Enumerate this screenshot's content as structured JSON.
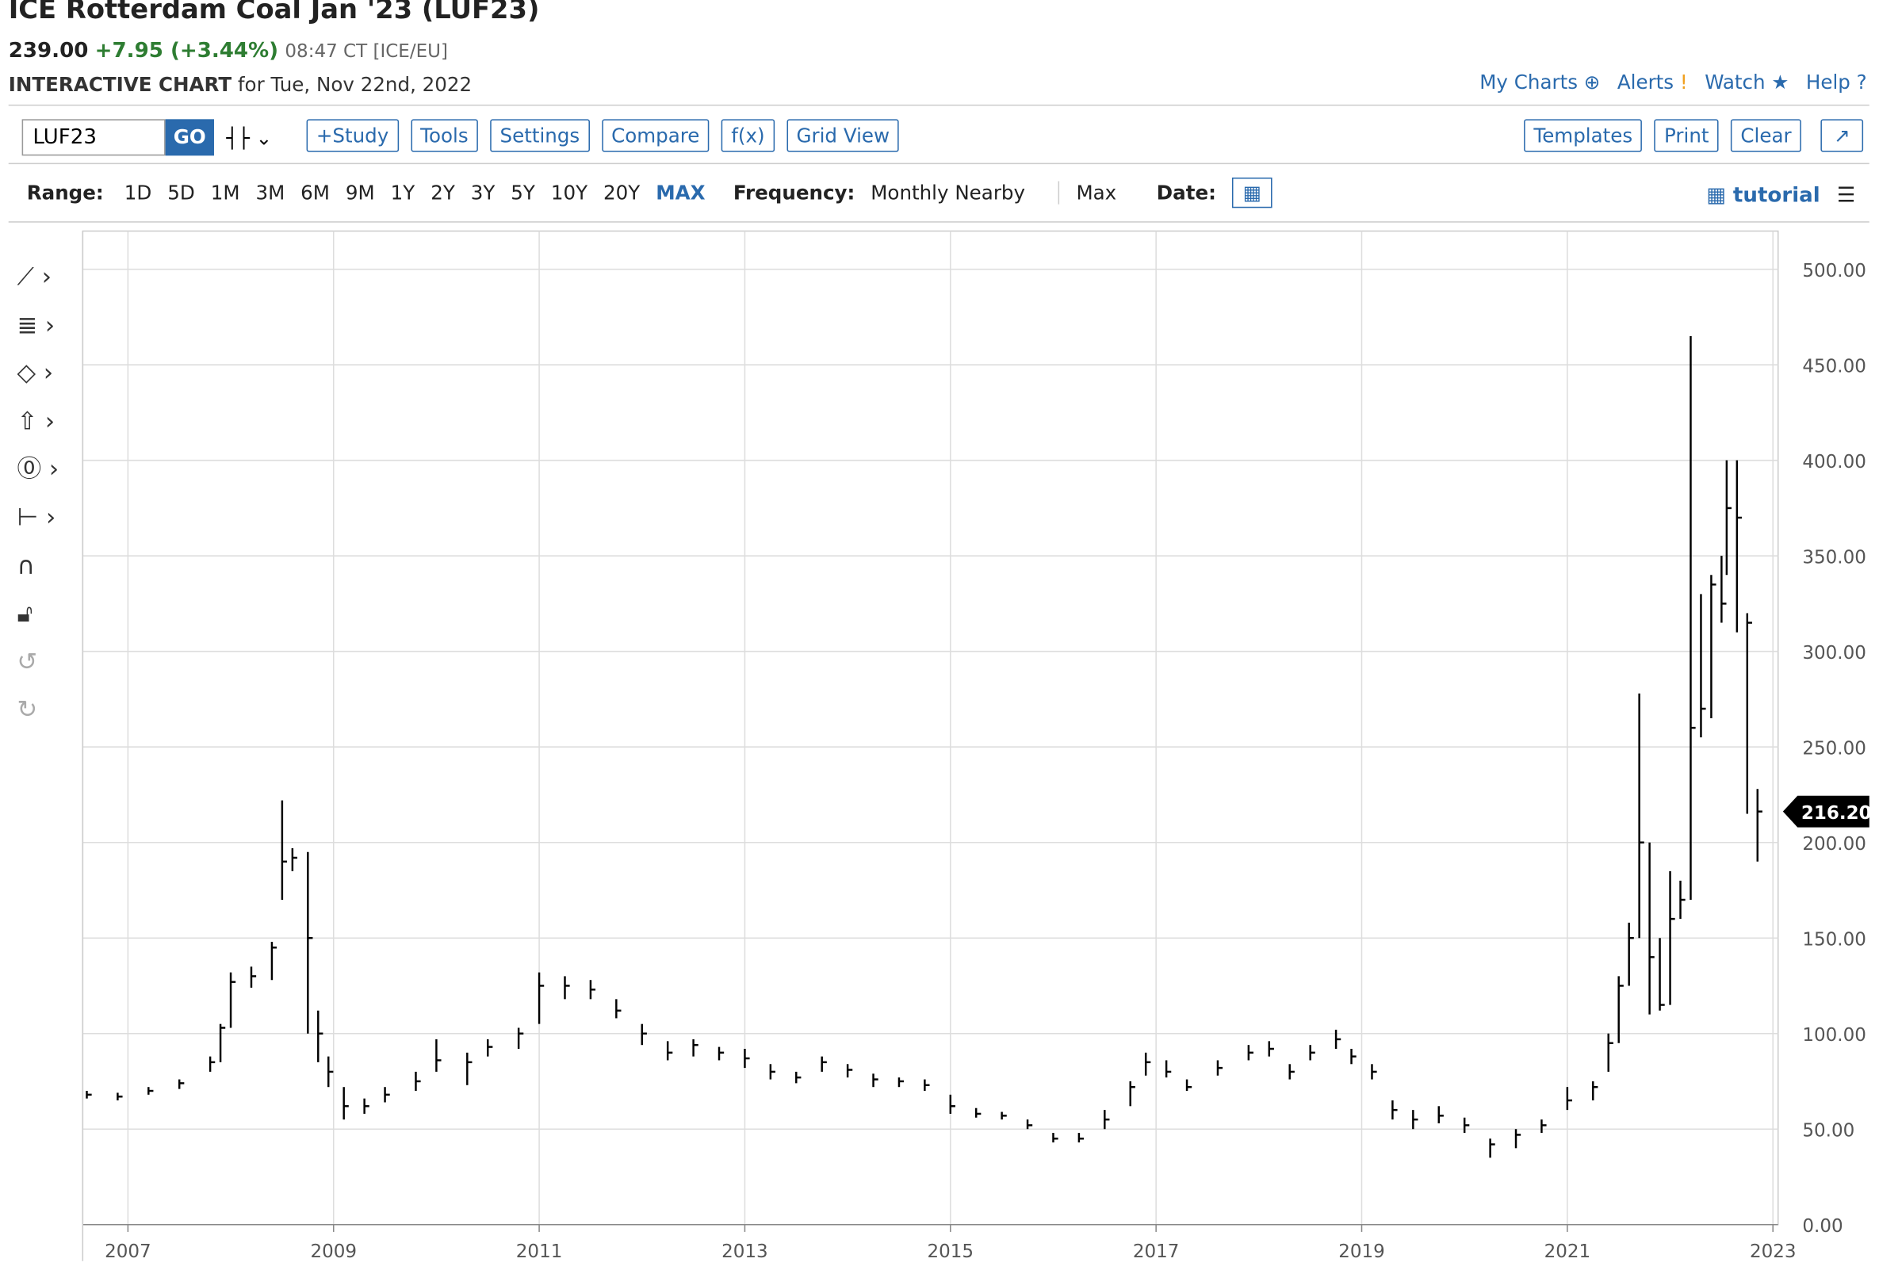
{
  "header": {
    "title": "ICE Rotterdam Coal Jan '23 (LUF23)",
    "last": "239.00",
    "change": "+7.95 (+3.44%)",
    "time": "08:47 CT [ICE/EU]",
    "chart_label": "INTERACTIVE CHART",
    "chart_date": "for Tue, Nov 22nd, 2022"
  },
  "links": [
    "My Charts",
    "Alerts",
    "Watch",
    "Help"
  ],
  "toolbar": {
    "symbol": "LUF23",
    "go": "GO",
    "buttons_left": [
      "+Study",
      "Tools",
      "Settings",
      "Compare",
      "f(x)",
      "Grid View"
    ],
    "buttons_right": [
      "Templates",
      "Print",
      "Clear"
    ]
  },
  "range_bar": {
    "range_label": "Range:",
    "ranges": [
      "1D",
      "5D",
      "1M",
      "3M",
      "6M",
      "9M",
      "1Y",
      "2Y",
      "3Y",
      "5Y",
      "10Y",
      "20Y",
      "MAX"
    ],
    "active_range": "MAX",
    "frequency_label": "Frequency:",
    "frequency": "Monthly Nearby",
    "period": "Max",
    "date_label": "Date:",
    "tutorial": "tutorial"
  },
  "chart_data": {
    "type": "hlc",
    "color": "#000000",
    "x": [
      2006.6,
      2006.9,
      2007.2,
      2007.5,
      2007.8,
      2007.9,
      2008.0,
      2008.2,
      2008.4,
      2008.5,
      2008.6,
      2008.75,
      2008.85,
      2008.95,
      2009.1,
      2009.3,
      2009.5,
      2009.8,
      2010.0,
      2010.3,
      2010.5,
      2010.8,
      2011.0,
      2011.25,
      2011.5,
      2011.75,
      2012.0,
      2012.25,
      2012.5,
      2012.75,
      2013.0,
      2013.25,
      2013.5,
      2013.75,
      2014.0,
      2014.25,
      2014.5,
      2014.75,
      2015.0,
      2015.25,
      2015.5,
      2015.75,
      2016.0,
      2016.25,
      2016.5,
      2016.75,
      2016.9,
      2017.1,
      2017.3,
      2017.6,
      2017.9,
      2018.1,
      2018.3,
      2018.5,
      2018.75,
      2018.9,
      2019.1,
      2019.3,
      2019.5,
      2019.75,
      2020.0,
      2020.25,
      2020.5,
      2020.75,
      2021.0,
      2021.25,
      2021.4,
      2021.5,
      2021.6,
      2021.7,
      2021.8,
      2021.9,
      2022.0,
      2022.1,
      2022.2,
      2022.3,
      2022.4,
      2022.5,
      2022.55,
      2022.65,
      2022.75,
      2022.85
    ],
    "high": [
      70,
      69,
      72,
      76,
      88,
      105,
      132,
      135,
      148,
      222,
      197,
      195,
      112,
      88,
      72,
      66,
      72,
      80,
      97,
      90,
      97,
      103,
      132,
      130,
      128,
      118,
      105,
      96,
      97,
      93,
      92,
      84,
      80,
      88,
      84,
      79,
      77,
      76,
      68,
      61,
      59,
      55,
      48,
      48,
      60,
      75,
      90,
      86,
      76,
      86,
      94,
      96,
      84,
      94,
      102,
      92,
      84,
      65,
      60,
      62,
      56,
      45,
      50,
      55,
      72,
      75,
      100,
      130,
      158,
      278,
      200,
      150,
      185,
      180,
      465,
      330,
      340,
      350,
      400,
      400,
      320,
      228
    ],
    "low": [
      66,
      65,
      68,
      71,
      80,
      85,
      103,
      124,
      128,
      170,
      185,
      100,
      85,
      72,
      55,
      58,
      64,
      70,
      80,
      73,
      88,
      92,
      105,
      118,
      118,
      108,
      94,
      86,
      88,
      86,
      82,
      76,
      74,
      80,
      77,
      72,
      72,
      70,
      58,
      56,
      55,
      50,
      43,
      43,
      50,
      62,
      78,
      77,
      70,
      78,
      86,
      88,
      76,
      86,
      92,
      84,
      76,
      55,
      50,
      53,
      48,
      35,
      40,
      48,
      60,
      65,
      80,
      95,
      125,
      150,
      110,
      112,
      115,
      160,
      170,
      255,
      265,
      315,
      340,
      310,
      215,
      190
    ],
    "close": [
      68,
      67,
      70,
      74,
      85,
      103,
      127,
      130,
      145,
      190,
      192,
      150,
      100,
      80,
      62,
      62,
      68,
      75,
      86,
      85,
      93,
      100,
      125,
      125,
      123,
      112,
      100,
      90,
      94,
      90,
      87,
      80,
      77,
      85,
      81,
      76,
      75,
      73,
      62,
      58,
      57,
      52,
      45,
      45,
      55,
      72,
      85,
      80,
      72,
      82,
      90,
      92,
      80,
      90,
      97,
      88,
      80,
      60,
      55,
      57,
      52,
      42,
      47,
      52,
      65,
      72,
      95,
      125,
      150,
      200,
      140,
      115,
      160,
      170,
      260,
      270,
      335,
      325,
      375,
      370,
      315,
      216.2
    ],
    "last_price": {
      "value": 216.2,
      "label": "216.20"
    },
    "xlim": [
      2006.56,
      2023.05
    ],
    "xticks": [
      2007,
      2009,
      2011,
      2013,
      2015,
      2017,
      2019,
      2021,
      2023
    ],
    "ylim": [
      0,
      520
    ],
    "yticks": [
      {
        "value": 0,
        "label": "0.00"
      },
      {
        "value": 50,
        "label": "50.00"
      },
      {
        "value": 100,
        "label": "100.00"
      },
      {
        "value": 150,
        "label": "150.00"
      },
      {
        "value": 200,
        "label": "200.00"
      },
      {
        "value": 250,
        "label": "250.00"
      },
      {
        "value": 300,
        "label": "300.00"
      },
      {
        "value": 350,
        "label": "350.00"
      },
      {
        "value": 400,
        "label": "400.00"
      },
      {
        "value": 450,
        "label": "450.00"
      },
      {
        "value": 500,
        "label": "500.00"
      }
    ],
    "grid": true
  }
}
